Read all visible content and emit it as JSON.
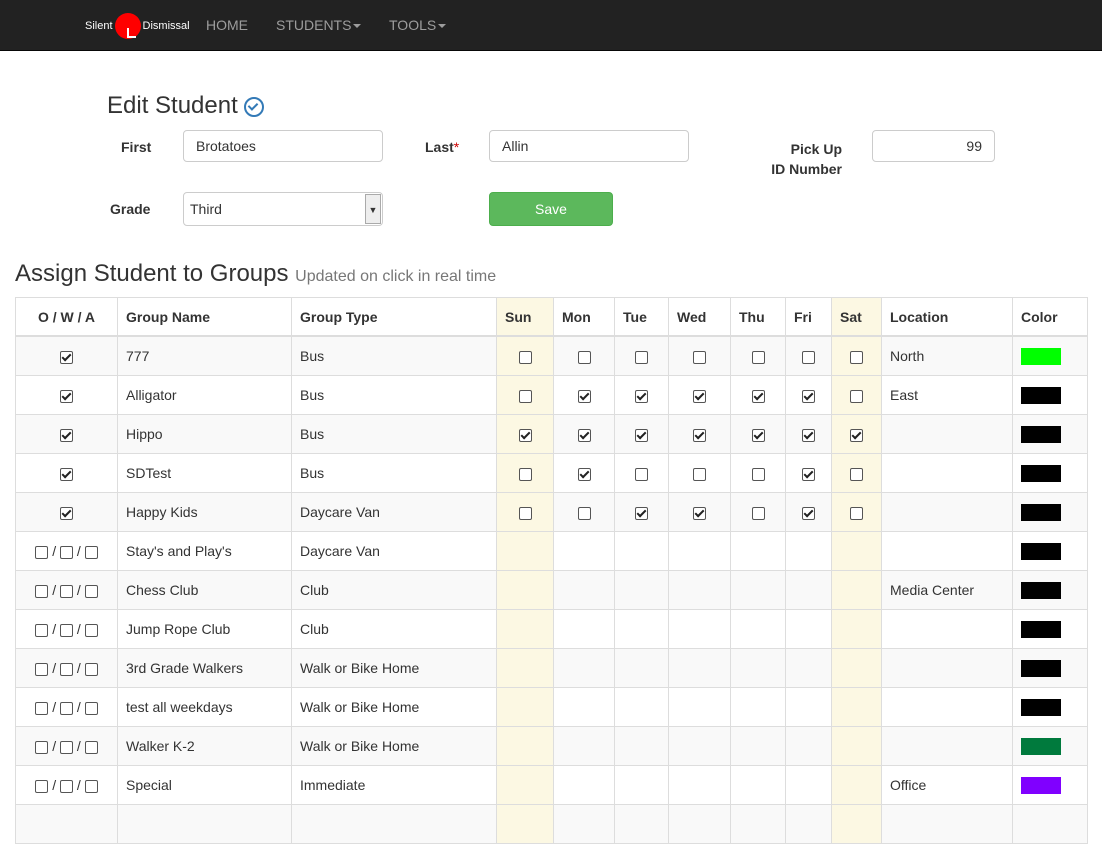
{
  "nav": {
    "logo_left": "Silent",
    "logo_right": "Dismissal",
    "home": "HOME",
    "students": "STUDENTS",
    "tools": "TOOLS"
  },
  "form": {
    "title": "Edit Student",
    "first_label": "First",
    "first_value": "Brotatoes",
    "last_label": "Last",
    "required_mark": "*",
    "last_value": "Allin",
    "pickup_label_1": "Pick Up",
    "pickup_label_2": "ID Number",
    "pickup_value": "99",
    "grade_label": "Grade",
    "grade_value": "Third",
    "save": "Save"
  },
  "groups": {
    "title": "Assign Student to Groups",
    "subtitle": "Updated on click in real time",
    "headers": [
      "O / W / A",
      "Group Name",
      "Group Type",
      "Sun",
      "Mon",
      "Tue",
      "Wed",
      "Thu",
      "Fri",
      "Sat",
      "Location",
      "Color"
    ],
    "rows": [
      {
        "assigned": true,
        "name": "777",
        "type": "Bus",
        "days": [
          0,
          0,
          0,
          0,
          0,
          0,
          0
        ],
        "location": "North",
        "color": "#00ff00"
      },
      {
        "assigned": true,
        "name": "Alligator",
        "type": "Bus",
        "days": [
          0,
          1,
          1,
          1,
          1,
          1,
          0
        ],
        "location": "East",
        "color": "#000000"
      },
      {
        "assigned": true,
        "name": "Hippo",
        "type": "Bus",
        "days": [
          1,
          1,
          1,
          1,
          1,
          1,
          1
        ],
        "location": "",
        "color": "#000000"
      },
      {
        "assigned": true,
        "name": "SDTest",
        "type": "Bus",
        "days": [
          0,
          1,
          0,
          0,
          0,
          1,
          0
        ],
        "location": "",
        "color": "#000000"
      },
      {
        "assigned": true,
        "name": "Happy Kids",
        "type": "Daycare Van",
        "days": [
          0,
          0,
          1,
          1,
          0,
          1,
          0
        ],
        "location": "",
        "color": "#000000"
      },
      {
        "assigned": false,
        "name": "Stay's and Play's",
        "type": "Daycare Van",
        "location": "",
        "color": "#000000"
      },
      {
        "assigned": false,
        "name": "Chess Club",
        "type": "Club",
        "location": "Media Center",
        "color": "#000000"
      },
      {
        "assigned": false,
        "name": "Jump Rope Club",
        "type": "Club",
        "location": "",
        "color": "#000000"
      },
      {
        "assigned": false,
        "name": "3rd Grade Walkers",
        "type": "Walk or Bike Home",
        "location": "",
        "color": "#000000"
      },
      {
        "assigned": false,
        "name": "test all weekdays",
        "type": "Walk or Bike Home",
        "location": "",
        "color": "#000000"
      },
      {
        "assigned": false,
        "name": "Walker K-2",
        "type": "Walk or Bike Home",
        "location": "",
        "color": "#007a3d"
      },
      {
        "assigned": false,
        "name": "Special",
        "type": "Immediate",
        "location": "Office",
        "color": "#8000ff"
      },
      {
        "assigned": false,
        "name": "",
        "type": "",
        "location": "",
        "color": ""
      }
    ]
  }
}
